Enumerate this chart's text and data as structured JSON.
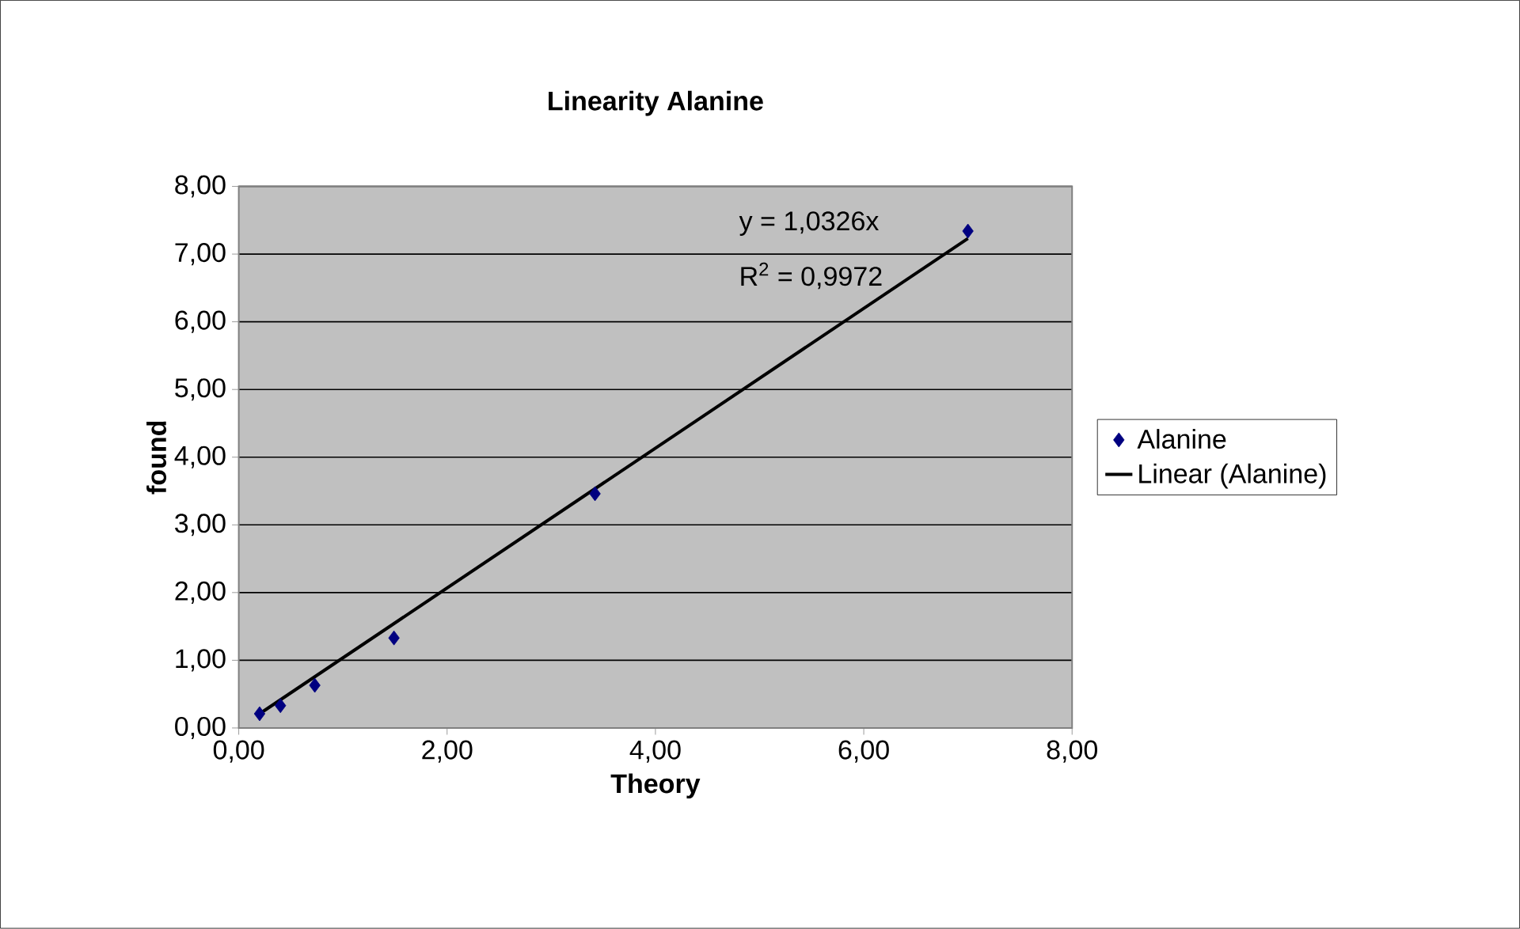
{
  "chart_data": {
    "type": "scatter",
    "title": "Linearity Alanine",
    "xlabel": "Theory",
    "ylabel": "found",
    "series": [
      {
        "name": "Alanine",
        "color": "#000080",
        "marker": "diamond",
        "x": [
          0.2,
          0.4,
          0.73,
          1.49,
          3.42,
          7.0
        ],
        "values": [
          0.21,
          0.33,
          0.63,
          1.33,
          3.46,
          7.34
        ]
      },
      {
        "name": "Linear (Alanine)",
        "type": "line",
        "color": "#000000",
        "marker": "none",
        "line_style": "solid",
        "x": [
          0.2,
          7.0
        ],
        "values": [
          0.21,
          7.23
        ]
      }
    ],
    "annotations": [
      "y = 1,0326x",
      "R$^{2}$ = 0,9972"
    ],
    "xlim": [
      0,
      8
    ],
    "ylim": [
      0,
      8
    ],
    "xticks": [
      {
        "value": 0,
        "label": "0,00"
      },
      {
        "value": 2,
        "label": "2,00"
      },
      {
        "value": 4,
        "label": "4,00"
      },
      {
        "value": 6,
        "label": "6,00"
      },
      {
        "value": 8,
        "label": "8,00"
      }
    ],
    "yticks": [
      {
        "value": 0,
        "label": "0,00"
      },
      {
        "value": 1,
        "label": "1,00"
      },
      {
        "value": 2,
        "label": "2,00"
      },
      {
        "value": 3,
        "label": "3,00"
      },
      {
        "value": 4,
        "label": "4,00"
      },
      {
        "value": 5,
        "label": "5,00"
      },
      {
        "value": 6,
        "label": "6,00"
      },
      {
        "value": 7,
        "label": "7,00"
      },
      {
        "value": 8,
        "label": "8,00"
      }
    ],
    "grid": "y",
    "legend": "right"
  }
}
